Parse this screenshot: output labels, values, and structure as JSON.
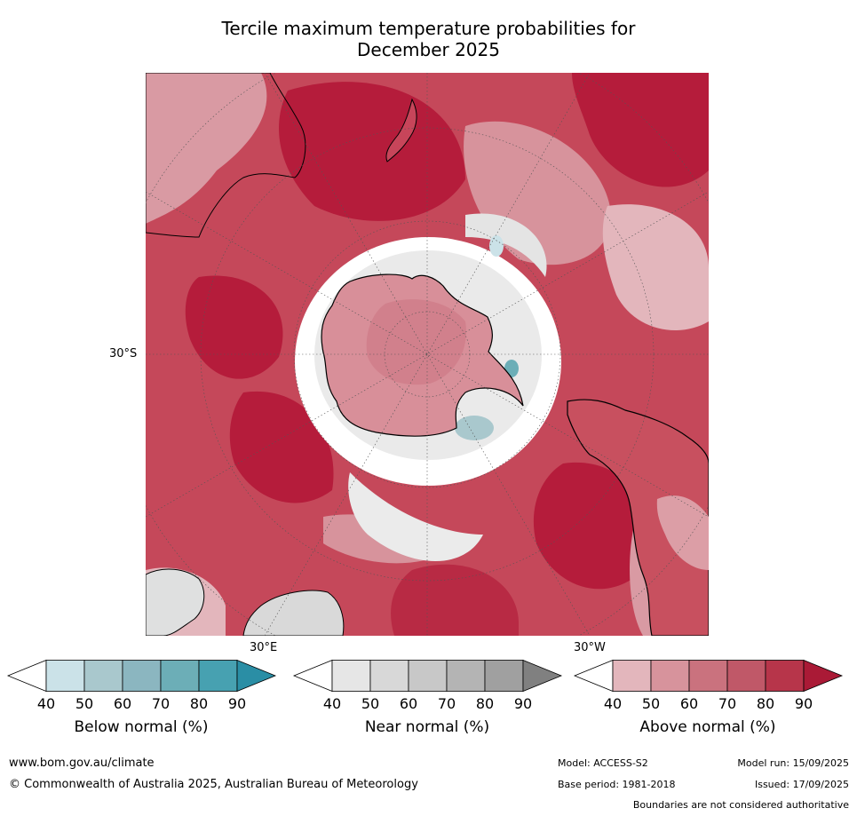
{
  "title_line1": "Tercile maximum temperature probabilities for",
  "title_line2": "December 2025",
  "map_labels": {
    "lat_30s": "30°S",
    "lon_30e": "30°E",
    "lon_30w": "30°W"
  },
  "colorbars": [
    {
      "title": "Below normal (%)",
      "ticks": [
        "40",
        "50",
        "60",
        "70",
        "80",
        "90"
      ],
      "colors": [
        "#ffffff",
        "#cbe2e8",
        "#a9c8cd",
        "#8bb6c0",
        "#6caeb7",
        "#47a1b1",
        "#2a8ea5"
      ]
    },
    {
      "title": "Near normal (%)",
      "ticks": [
        "40",
        "50",
        "60",
        "70",
        "80",
        "90"
      ],
      "colors": [
        "#ffffff",
        "#e6e6e6",
        "#d8d8d8",
        "#c8c8c8",
        "#b4b4b4",
        "#a0a0a0",
        "#808080"
      ]
    },
    {
      "title": "Above normal (%)",
      "ticks": [
        "40",
        "50",
        "60",
        "70",
        "80",
        "90"
      ],
      "colors": [
        "#ffffff",
        "#e3b6bc",
        "#d7939c",
        "#ca727e",
        "#c05868",
        "#b7354a",
        "#aa1a36"
      ]
    }
  ],
  "footer": {
    "website": "www.bom.gov.au/climate",
    "copyright": "© Commonwealth of Australia 2025, Australian Bureau of Meteorology",
    "model": "Model: ACCESS-S2",
    "model_run": "Model run: 15/09/2025",
    "base_period": "Base period: 1981-2018",
    "issued": "Issued: 17/09/2025",
    "disclaimer": "Boundaries are not considered authoritative"
  }
}
